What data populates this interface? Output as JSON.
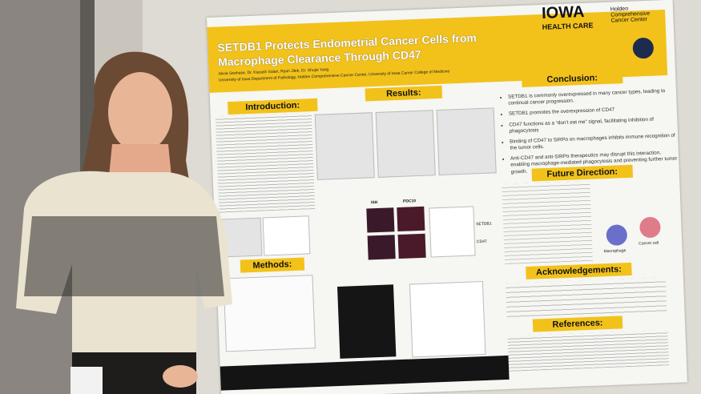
{
  "poster": {
    "logo": {
      "brand": "IOWA",
      "sub": "HEALTH CARE",
      "center": "Holden Comprehensive Cancer Center"
    },
    "title": "SETDB1 Protects Endometrial Cancer Cells from Macrophage Clearance Through CD47",
    "authors": "Alivia Seehase, Dr. Kiarash Salari, Ryan Jilek, Dr. Shujie Yang",
    "affiliation": "University of Iowa Department of Pathology, Holden Comprehensive Cancer Center, University of Iowa Carver College of Medicine",
    "sections": {
      "introduction": "Introduction:",
      "results": "Results:",
      "methods": "Methods:",
      "conclusion": "Conclusion:",
      "future": "Future Direction:",
      "acknowledgements": "Acknowledgements:",
      "references": "References:"
    },
    "conclusion_points": [
      "SETDB1 is commonly overexpressed in many cancer types, leading to continual cancer progression.",
      "SETDB1 promotes the overexpression of CD47",
      "CD47 functions as a “don’t eat me” signal, facilitating inhibition of phagocytosis",
      "Binding of CD47 to SIRPα on macrophages inhibits immune recognition of the tumor cells.",
      "Anti-CD47 and anti-SIRPα therapeutics may disrupt this interaction, enabling macrophage-mediated phagocytosis and preventing further tumor growth."
    ],
    "figure_labels": [
      "Macrophage",
      "Cancer cell",
      "ISH",
      "PDC10",
      "SETDB1",
      "CD47"
    ]
  }
}
